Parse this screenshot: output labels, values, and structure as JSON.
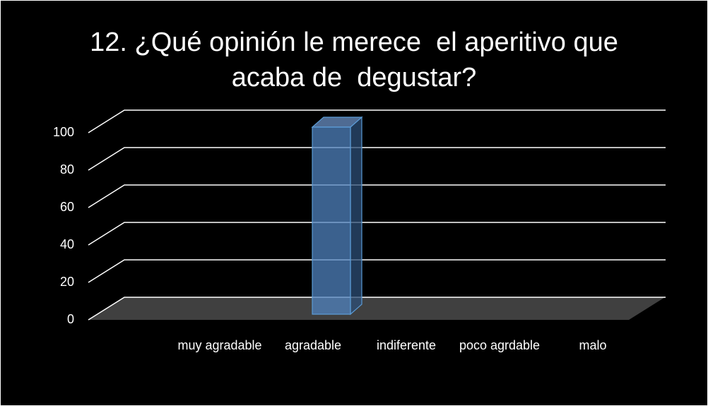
{
  "chart_data": {
    "type": "bar3d",
    "title": "12. ¿Qué opinión le merece  el aperitivo que acaba de  degustar?",
    "categories": [
      "muy agradable",
      "agradable",
      "indiferente",
      "poco agrdable",
      "malo"
    ],
    "values": [
      0,
      100,
      0,
      0,
      0
    ],
    "color": "#4f81bd",
    "ylim": [
      0,
      100
    ],
    "yticks": [
      0,
      20,
      40,
      60,
      80,
      100
    ],
    "grid": true
  }
}
